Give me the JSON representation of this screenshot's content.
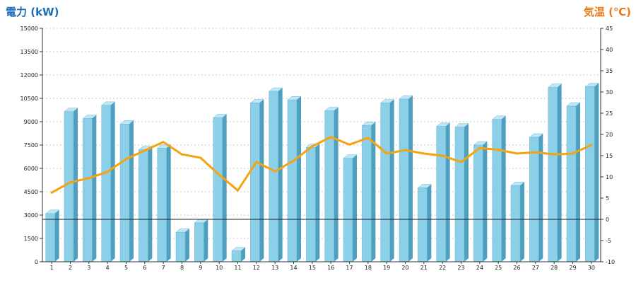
{
  "chart_data": {
    "type": "bar",
    "categories": [
      "1",
      "2",
      "3",
      "4",
      "5",
      "6",
      "7",
      "8",
      "9",
      "10",
      "11",
      "12",
      "13",
      "14",
      "15",
      "16",
      "17",
      "18",
      "19",
      "20",
      "21",
      "22",
      "23",
      "24",
      "25",
      "26",
      "27",
      "28",
      "29",
      "30"
    ],
    "series": [
      {
        "chart": "bar",
        "axis": "left",
        "values": [
          3100,
          9650,
          9200,
          10050,
          8850,
          7200,
          7300,
          1900,
          2500,
          9250,
          700,
          10200,
          10950,
          10400,
          7350,
          9700,
          6650,
          8750,
          10200,
          10450,
          4750,
          8700,
          8650,
          7500,
          9150,
          4900,
          8000,
          11200,
          10000,
          11250
        ],
        "color": "#8bcfe8"
      },
      {
        "chart": "line",
        "axis": "right",
        "values": [
          6.3,
          8.7,
          9.7,
          11.2,
          14.2,
          16.2,
          18.2,
          15.3,
          14.5,
          10.5,
          6.8,
          13.5,
          11.3,
          13.8,
          17.2,
          19.4,
          17.6,
          19.2,
          15.5,
          16.3,
          15.5,
          15.0,
          13.5,
          16.8,
          16.4,
          15.5,
          15.8,
          15.3,
          15.5,
          17.5
        ],
        "color": "#f5a30f"
      }
    ],
    "left_axis": {
      "title": "電力 (kW)",
      "title_color": "#1c6bb5",
      "min": 0,
      "max": 15000,
      "step": 1500,
      "tick_labels": [
        "0",
        "1500",
        "3000",
        "4500",
        "6000",
        "7500",
        "9000",
        "10500",
        "12000",
        "13500",
        "15000"
      ]
    },
    "right_axis": {
      "title": "気温 (℃)",
      "title_color": "#e97a1a",
      "min": -10,
      "max": 45,
      "step": 5,
      "tick_labels": [
        "-10",
        "-5",
        "0",
        "5",
        "10",
        "15",
        "20",
        "25",
        "30",
        "35",
        "40",
        "45"
      ]
    },
    "grid": true
  }
}
